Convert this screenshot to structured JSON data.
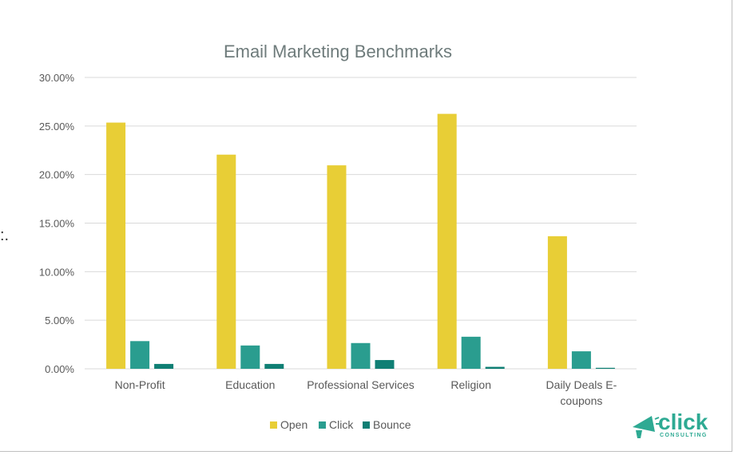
{
  "stray_text": ":.",
  "chart_data": {
    "type": "bar",
    "title": "Email Marketing Benchmarks",
    "xlabel": "",
    "ylabel": "",
    "categories": [
      "Non-Profit",
      "Education",
      "Professional Services",
      "Religion",
      "Daily Deals E-coupons"
    ],
    "category_lines": [
      [
        "Non-Profit"
      ],
      [
        "Education"
      ],
      [
        "Professional Services"
      ],
      [
        "Religion"
      ],
      [
        "Daily Deals E-",
        "coupons"
      ]
    ],
    "series": [
      {
        "name": "Open",
        "values": [
          25.35,
          22.05,
          20.95,
          26.25,
          13.65
        ],
        "color": "#e8ce36"
      },
      {
        "name": "Click",
        "values": [
          2.85,
          2.4,
          2.65,
          3.3,
          1.8
        ],
        "color": "#2a9d8f"
      },
      {
        "name": "Bounce",
        "values": [
          0.5,
          0.5,
          0.9,
          0.2,
          0.1
        ],
        "color": "#0f7f74"
      }
    ],
    "ylim": [
      0,
      30
    ],
    "yticks": [
      0,
      5,
      10,
      15,
      20,
      25,
      30
    ],
    "ytick_labels": [
      "0.00%",
      "5.00%",
      "10.00%",
      "15.00%",
      "20.00%",
      "25.00%",
      "30.00%"
    ],
    "grid": true,
    "legend_position": "bottom",
    "colors": {
      "title": "#6e7b7b",
      "axis_text": "#595959",
      "grid": "#d9d9d9"
    }
  },
  "logo": {
    "word": "click",
    "sub": "CONSULTING",
    "color": "#2eaa93"
  }
}
